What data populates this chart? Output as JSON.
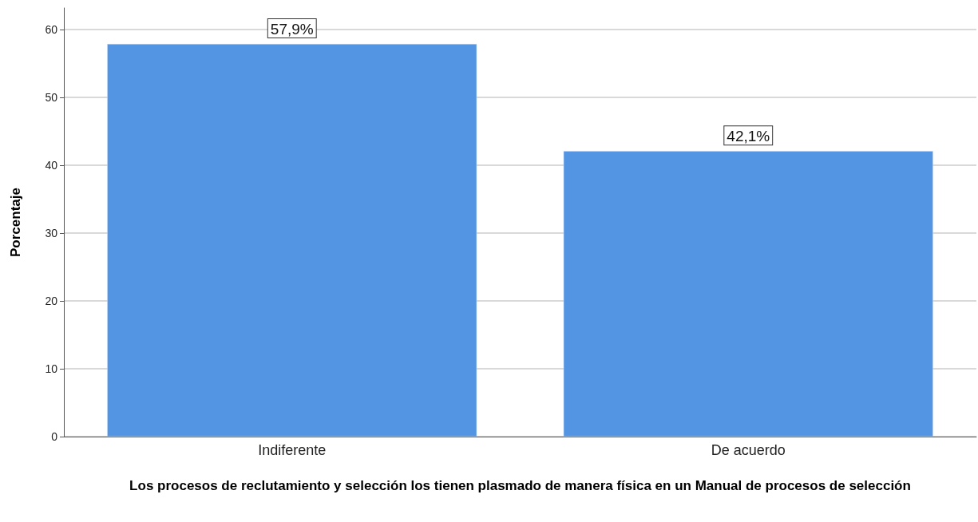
{
  "chart_data": {
    "type": "bar",
    "xlabel": "Los procesos de reclutamiento y selección los tienen plasmado de manera física en un Manual de procesos de selección",
    "ylabel": "Porcentaje",
    "categories": [
      "Indiferente",
      "De acuerdo"
    ],
    "values": [
      57.9,
      42.1
    ],
    "value_labels": [
      "57,9%",
      "42,1%"
    ],
    "color": "#5394e3",
    "ylim": [
      0,
      63.2
    ],
    "yticks": [
      0,
      10,
      20,
      30,
      40,
      50,
      60
    ],
    "grid": "y"
  }
}
